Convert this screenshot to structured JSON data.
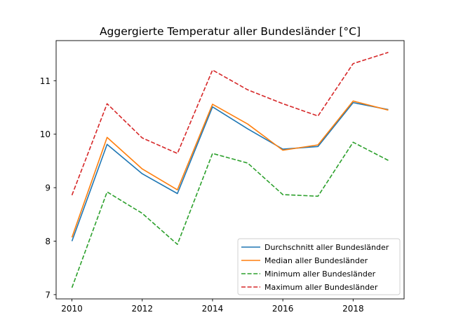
{
  "chart_data": {
    "type": "line",
    "title": "Aggergierte Temperatur aller Bundesländer [°C]",
    "xlabel": "",
    "ylabel": "",
    "x": [
      2010,
      2011,
      2012,
      2013,
      2014,
      2015,
      2016,
      2017,
      2018,
      2019
    ],
    "xlim": [
      2009.55,
      2019.45
    ],
    "ylim": [
      6.92,
      11.75
    ],
    "xticks": [
      2010,
      2012,
      2014,
      2016,
      2018
    ],
    "yticks": [
      7,
      8,
      9,
      10,
      11
    ],
    "grid": false,
    "legend_position": "lower-right",
    "series": [
      {
        "name": "Durchschnitt aller Bundesländer",
        "color": "#1f77b4",
        "dash": "solid",
        "values": [
          8.0,
          9.81,
          9.26,
          8.89,
          10.51,
          10.1,
          9.72,
          9.77,
          10.59,
          10.46
        ]
      },
      {
        "name": "Median aller Bundesländer",
        "color": "#ff7f0e",
        "dash": "solid",
        "values": [
          8.07,
          9.94,
          9.35,
          8.96,
          10.56,
          10.19,
          9.7,
          9.8,
          10.62,
          10.45
        ]
      },
      {
        "name": "Minimum aller Bundesländer",
        "color": "#2ca02c",
        "dash": "dashed",
        "values": [
          7.13,
          8.92,
          8.52,
          7.94,
          9.64,
          9.46,
          8.87,
          8.84,
          9.85,
          9.51
        ]
      },
      {
        "name": "Maximum aller Bundesländer",
        "color": "#d62728",
        "dash": "dashed",
        "values": [
          8.86,
          10.57,
          9.93,
          9.64,
          11.2,
          10.83,
          10.57,
          10.34,
          11.32,
          11.53
        ]
      }
    ]
  }
}
